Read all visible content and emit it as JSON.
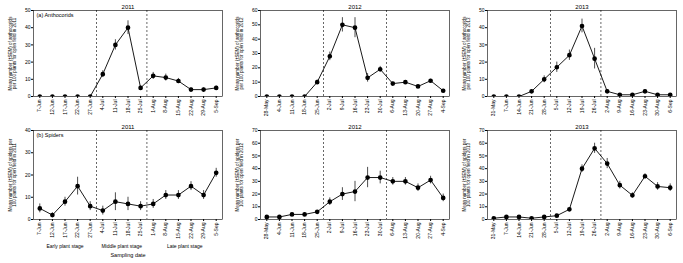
{
  "chart_data": [
    {
      "type": "line",
      "title": "2011",
      "panel_label": "(a) Anthocorids",
      "ylabel": "Mean number (±SEM) of anthocorids per 100 plants for open field in 2011",
      "categories": [
        "7-Jun",
        "12-Jun",
        "17-Jun",
        "22-Jun",
        "27-Jun",
        "4-Jul",
        "11-Jul",
        "18-Jul",
        "25-Jul",
        "1-Aug",
        "8-Aug",
        "15-Aug",
        "22-Aug",
        "29-Aug",
        "5-Sep"
      ],
      "values": [
        0,
        0,
        0,
        0,
        0,
        13,
        30,
        40,
        5,
        12,
        11,
        9,
        4,
        4,
        5
      ],
      "errors": [
        0,
        0,
        0,
        0,
        0,
        2,
        3,
        4,
        1,
        2,
        2,
        1.5,
        1,
        1,
        1
      ],
      "ylim": [
        0,
        50
      ],
      "yticks": [
        0,
        10,
        20,
        30,
        40,
        50
      ],
      "stage_ends": [
        "27-Jun",
        "25-Jul"
      ],
      "color": "#000000",
      "marker": "circle"
    },
    {
      "type": "line",
      "title": "2012",
      "ylabel": "Mean number (±SEM) of anthocorids per 100 plants for open field in 2012",
      "categories": [
        "28-May",
        "4-Jun",
        "11-Jun",
        "18-Jun",
        "25-Jun",
        "2-Jul",
        "9-Jul",
        "16-Jul",
        "23-Jul",
        "30-Jul",
        "6-Aug",
        "13-Aug",
        "20-Aug",
        "27-Aug",
        "4-Sep"
      ],
      "values": [
        0,
        0,
        0,
        0,
        10,
        28,
        50,
        48,
        13,
        19,
        9,
        10,
        7,
        11,
        4
      ],
      "errors": [
        0,
        0,
        0,
        0,
        1.5,
        3,
        5,
        7,
        3,
        2,
        1,
        1,
        1,
        1,
        1
      ],
      "ylim": [
        0,
        60
      ],
      "yticks": [
        0,
        10,
        20,
        30,
        40,
        50,
        60
      ],
      "stage_ends": [
        "25-Jun",
        "30-Jul"
      ],
      "color": "#000000",
      "marker": "circle"
    },
    {
      "type": "line",
      "title": "2013",
      "ylabel": "Mean number (±SEM) of anthocorids per 100 plants for open field in 2013",
      "categories": [
        "31-May",
        "7-Jun",
        "14-Jun",
        "21-Jun",
        "28-Jun",
        "5-Jul",
        "12-Jul",
        "19-Jul",
        "26-Jul",
        "2-Aug",
        "9-Aug",
        "16-Aug",
        "23-Aug",
        "30-Aug",
        "6-Sep"
      ],
      "values": [
        0,
        0,
        0,
        3,
        10,
        17,
        24,
        41,
        22,
        3,
        1,
        1,
        3,
        1,
        1
      ],
      "errors": [
        0,
        0,
        0,
        0.5,
        2,
        3,
        3,
        4,
        6,
        1,
        0.5,
        0.5,
        1,
        0.5,
        0.5
      ],
      "ylim": [
        0,
        50
      ],
      "yticks": [
        0,
        10,
        20,
        30,
        40,
        50
      ],
      "stage_ends": [
        "28-Jun",
        "26-Jul"
      ],
      "color": "#000000",
      "marker": "circle"
    },
    {
      "type": "line",
      "title": "2011",
      "panel_label": "(b) Spiders",
      "ylabel": "Mean number (±SEM) of spiders per 100 plants for open field in 2011",
      "xlabel": "Sampling date",
      "stage_labels": [
        "Early plant stage",
        "Middle plant stage",
        "Late plant stage"
      ],
      "categories": [
        "7-Jun",
        "12-Jun",
        "17-Jun",
        "22-Jun",
        "27-Jun",
        "4-Jul",
        "11-Jul",
        "18-Jul",
        "25-Jul",
        "1-Aug",
        "8-Aug",
        "15-Aug",
        "22-Aug",
        "29-Aug",
        "5-Sep"
      ],
      "values": [
        5,
        2,
        8,
        15,
        6,
        4,
        8,
        7,
        6,
        7,
        11,
        11,
        15,
        11,
        21
      ],
      "errors": [
        2,
        1,
        2,
        4,
        2,
        2,
        4,
        3,
        2,
        2,
        2,
        2,
        2,
        2,
        2
      ],
      "ylim": [
        0,
        40
      ],
      "yticks": [
        0,
        10,
        20,
        30,
        40
      ],
      "stage_ends": [
        "27-Jun",
        "25-Jul"
      ],
      "color": "#000000",
      "marker": "circle"
    },
    {
      "type": "line",
      "title": "2012",
      "ylabel": "Mean number (±SEM) of spiders per 100 plants for open field in 2012",
      "categories": [
        "28-May",
        "4-Jun",
        "11-Jun",
        "18-Jun",
        "25-Jun",
        "2-Jul",
        "9-Jul",
        "16-Jul",
        "23-Jul",
        "30-Jul",
        "6-Aug",
        "13-Aug",
        "20-Aug",
        "27-Aug",
        "4-Sep"
      ],
      "values": [
        2,
        2,
        4,
        4,
        6,
        14,
        20,
        22,
        33,
        33,
        30,
        30,
        25,
        31,
        17
      ],
      "errors": [
        1,
        1,
        1,
        1,
        1,
        3,
        5,
        8,
        8,
        5,
        3,
        3,
        3,
        3,
        3
      ],
      "ylim": [
        0,
        70
      ],
      "yticks": [
        0,
        10,
        20,
        30,
        40,
        50,
        60,
        70
      ],
      "stage_ends": [
        "25-Jun",
        "30-Jul"
      ],
      "color": "#000000",
      "marker": "circle"
    },
    {
      "type": "line",
      "title": "2013",
      "ylabel": "Mean number (±SEM) of spiders per 100 plants for open field in 2013",
      "categories": [
        "31-May",
        "7-Jun",
        "14-Jun",
        "21-Jun",
        "28-Jun",
        "5-Jul",
        "12-Jul",
        "19-Jul",
        "26-Jul",
        "2-Aug",
        "9-Aug",
        "16-Aug",
        "23-Aug",
        "30-Aug",
        "6-Sep"
      ],
      "values": [
        1,
        2,
        2,
        1,
        2,
        3,
        8,
        40,
        56,
        44,
        27,
        19,
        34,
        26,
        25
      ],
      "errors": [
        0.5,
        1,
        0.5,
        0.5,
        1,
        1,
        1,
        3,
        4,
        4,
        3,
        2,
        2,
        3,
        3
      ],
      "ylim": [
        0,
        70
      ],
      "yticks": [
        0,
        10,
        20,
        30,
        40,
        50,
        60,
        70
      ],
      "stage_ends": [
        "28-Jun",
        "26-Jul"
      ],
      "color": "#000000",
      "marker": "circle"
    }
  ]
}
